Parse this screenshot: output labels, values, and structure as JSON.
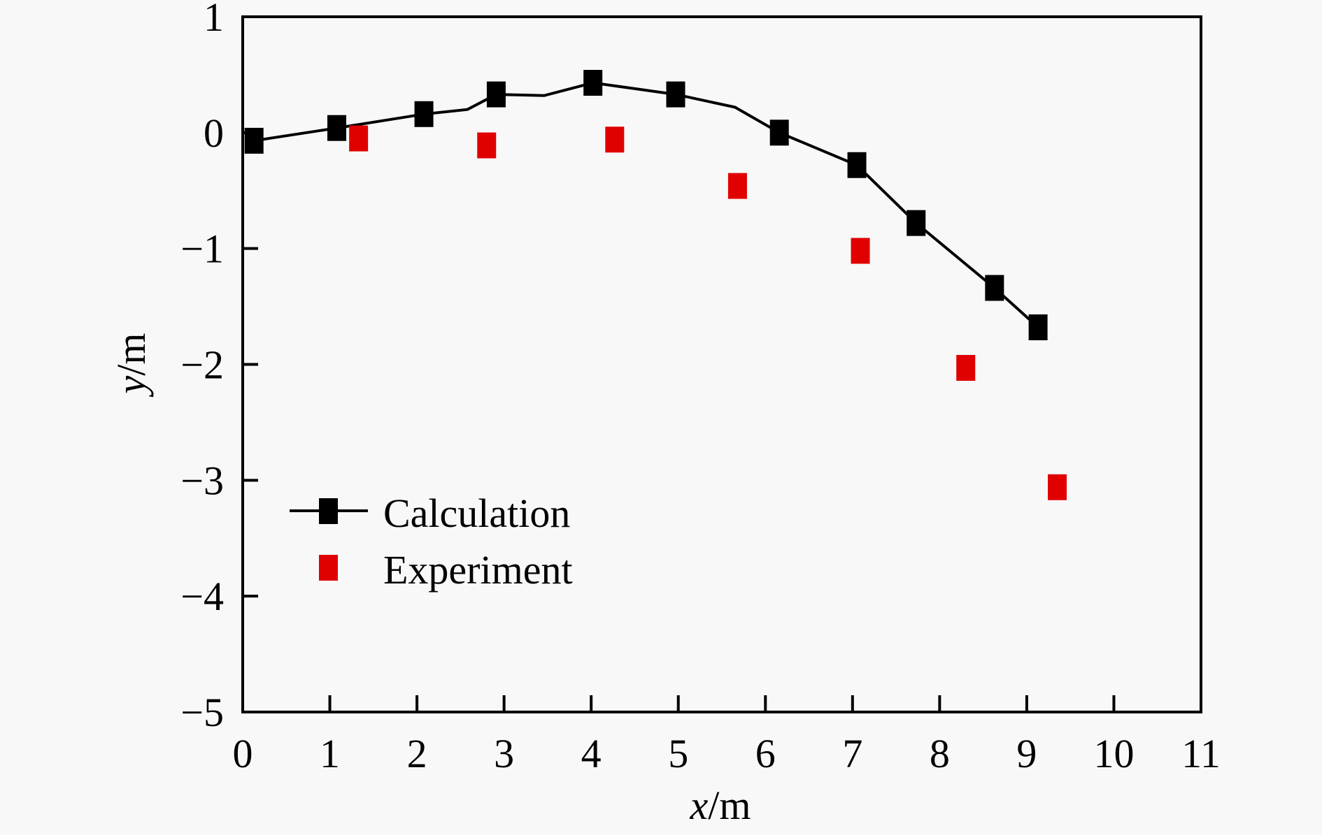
{
  "chart_data": {
    "type": "scatter",
    "title": "",
    "xlabel": {
      "var": "x",
      "unit": "/m"
    },
    "ylabel": {
      "var": "y",
      "unit": "/m"
    },
    "xlim": [
      0,
      11
    ],
    "ylim": [
      -5,
      1
    ],
    "xticks": [
      0,
      1,
      2,
      3,
      4,
      5,
      6,
      7,
      8,
      9,
      10,
      11
    ],
    "yticks": [
      1,
      0,
      -1,
      -2,
      -3,
      -4,
      -5
    ],
    "ytick_labels": [
      "1",
      "0",
      "−1",
      "−2",
      "−3",
      "−4",
      "−5"
    ],
    "grid": false,
    "legend_position": "lower-left",
    "series": [
      {
        "name": "Calculation",
        "style": "line-with-square-markers",
        "color": "#000000",
        "points": [
          [
            0.13,
            -0.07
          ],
          [
            1.08,
            0.04
          ],
          [
            2.08,
            0.16
          ],
          [
            2.91,
            0.33
          ],
          [
            4.02,
            0.43
          ],
          [
            4.97,
            0.33
          ],
          [
            6.16,
            0.0
          ],
          [
            7.05,
            -0.28
          ],
          [
            7.73,
            -0.78
          ],
          [
            8.63,
            -1.34
          ],
          [
            9.13,
            -1.68
          ]
        ],
        "line_path": [
          [
            0.13,
            -0.07
          ],
          [
            1.08,
            0.04
          ],
          [
            2.08,
            0.16
          ],
          [
            2.58,
            0.2
          ],
          [
            2.91,
            0.33
          ],
          [
            3.46,
            0.32
          ],
          [
            4.02,
            0.43
          ],
          [
            4.97,
            0.33
          ],
          [
            5.65,
            0.22
          ],
          [
            6.16,
            0.0
          ],
          [
            7.05,
            -0.28
          ],
          [
            7.73,
            -0.78
          ],
          [
            8.63,
            -1.34
          ],
          [
            9.13,
            -1.68
          ]
        ]
      },
      {
        "name": "Experiment",
        "style": "square-markers",
        "color": "#e00000",
        "points": [
          [
            1.33,
            -0.05
          ],
          [
            2.8,
            -0.11
          ],
          [
            4.27,
            -0.06
          ],
          [
            5.68,
            -0.46
          ],
          [
            7.09,
            -1.02
          ],
          [
            8.3,
            -2.03
          ],
          [
            9.35,
            -3.06
          ]
        ]
      }
    ]
  }
}
